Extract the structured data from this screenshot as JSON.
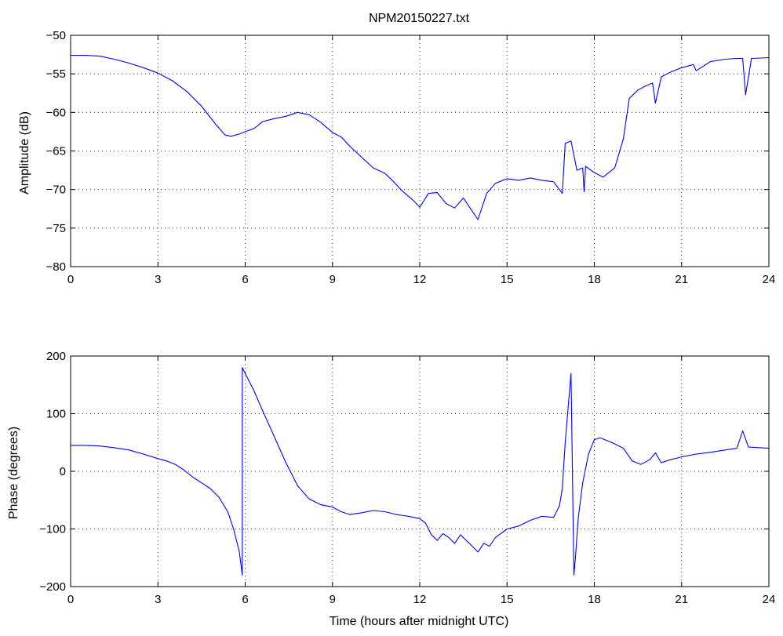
{
  "chart_data": [
    {
      "type": "line",
      "title": "NPM20150227.txt",
      "xlabel": "",
      "ylabel": "Amplitude (dB)",
      "xlim": [
        0,
        24
      ],
      "ylim": [
        -80,
        -50
      ],
      "xticks": [
        0,
        3,
        6,
        9,
        12,
        15,
        18,
        21,
        24
      ],
      "xtick_labels": [
        "0",
        "3",
        "6",
        "9",
        "12",
        "15",
        "18",
        "21",
        "24"
      ],
      "yticks": [
        -80,
        -75,
        -70,
        -65,
        -60,
        -55,
        -50
      ],
      "ytick_labels": [
        "−80",
        "−75",
        "−70",
        "−65",
        "−60",
        "−55",
        "−50"
      ],
      "grid": true,
      "color": "#0000ff",
      "series": [
        {
          "x": [
            0,
            0.5,
            1,
            1.5,
            2,
            2.5,
            3,
            3.5,
            4,
            4.5,
            5,
            5.3,
            5.5,
            5.8,
            6,
            6.3,
            6.6,
            7,
            7.4,
            7.8,
            8.2,
            8.6,
            9,
            9.3,
            9.6,
            10,
            10.4,
            10.8,
            11,
            11.4,
            11.8,
            12,
            12.3,
            12.6,
            12.9,
            13.2,
            13.5,
            13.8,
            14,
            14.3,
            14.6,
            15,
            15.4,
            15.8,
            16.2,
            16.6,
            16.9,
            17,
            17.2,
            17.4,
            17.6,
            17.65,
            17.7,
            18,
            18.3,
            18.7,
            19,
            19.2,
            19.5,
            19.8,
            20,
            20.1,
            20.3,
            20.6,
            21,
            21.4,
            21.5,
            22,
            22.5,
            22.9,
            23.1,
            23.2,
            23.4,
            24
          ],
          "y": [
            -52.6,
            -52.6,
            -52.7,
            -53.1,
            -53.6,
            -54.2,
            -54.9,
            -55.9,
            -57.3,
            -59.2,
            -61.6,
            -62.9,
            -63.1,
            -62.8,
            -62.5,
            -62.1,
            -61.2,
            -60.8,
            -60.5,
            -60.0,
            -60.3,
            -61.3,
            -62.6,
            -63.2,
            -64.4,
            -65.8,
            -67.2,
            -67.9,
            -68.6,
            -70.2,
            -71.5,
            -72.3,
            -70.5,
            -70.4,
            -71.8,
            -72.4,
            -71.1,
            -72.8,
            -73.9,
            -70.5,
            -69.2,
            -68.6,
            -68.8,
            -68.5,
            -68.8,
            -69.0,
            -70.5,
            -64.0,
            -63.7,
            -67.5,
            -67.2,
            -70.3,
            -67.0,
            -67.8,
            -68.4,
            -67.2,
            -63.4,
            -58.2,
            -57.1,
            -56.5,
            -56.2,
            -58.8,
            -55.4,
            -54.8,
            -54.2,
            -53.8,
            -54.6,
            -53.4,
            -53.1,
            -53.0,
            -53.0,
            -57.7,
            -53.0,
            -52.9
          ]
        }
      ]
    },
    {
      "type": "line",
      "title": "",
      "xlabel": "Time (hours after midnight UTC)",
      "ylabel": "Phase (degrees)",
      "xlim": [
        0,
        24
      ],
      "ylim": [
        -200,
        200
      ],
      "xticks": [
        0,
        3,
        6,
        9,
        12,
        15,
        18,
        21,
        24
      ],
      "xtick_labels": [
        "0",
        "3",
        "6",
        "9",
        "12",
        "15",
        "18",
        "21",
        "24"
      ],
      "yticks": [
        -200,
        -100,
        0,
        100,
        200
      ],
      "ytick_labels": [
        "−200",
        "−100",
        "0",
        "100",
        "200"
      ],
      "grid": true,
      "color": "#0000ff",
      "series": [
        {
          "x": [
            0,
            0.5,
            1,
            1.5,
            2,
            2.5,
            3,
            3.3,
            3.6,
            3.9,
            4.2,
            4.5,
            4.8,
            5.1,
            5.4,
            5.6,
            5.8,
            5.9,
            5.9,
            6.0,
            6.3,
            6.6,
            7,
            7.4,
            7.8,
            8.2,
            8.6,
            9,
            9.3,
            9.6,
            10,
            10.4,
            10.8,
            11.2,
            11.6,
            12,
            12.2,
            12.4,
            12.6,
            12.8,
            13,
            13.2,
            13.4,
            13.6,
            13.8,
            14,
            14.2,
            14.4,
            14.6,
            15,
            15.4,
            15.8,
            16.2,
            16.6,
            16.8,
            16.9,
            17.0,
            17.1,
            17.2,
            17.3,
            17.35,
            17.45,
            17.6,
            17.8,
            18.0,
            18.2,
            18.6,
            19,
            19.3,
            19.6,
            19.9,
            20.1,
            20.3,
            20.6,
            21,
            21.5,
            22,
            22.5,
            22.9,
            23.1,
            23.3,
            24
          ],
          "y": [
            45,
            45,
            44,
            41,
            37,
            30,
            22,
            18,
            12,
            2,
            -10,
            -20,
            -30,
            -45,
            -70,
            -100,
            -140,
            -180,
            180,
            170,
            140,
            105,
            60,
            15,
            -25,
            -48,
            -58,
            -62,
            -70,
            -75,
            -72,
            -68,
            -70,
            -75,
            -78,
            -82,
            -90,
            -110,
            -120,
            -108,
            -115,
            -125,
            -110,
            -120,
            -130,
            -140,
            -125,
            -130,
            -115,
            -100,
            -95,
            -85,
            -78,
            -80,
            -60,
            -30,
            50,
            110,
            170,
            -180,
            -150,
            -80,
            -20,
            30,
            55,
            58,
            50,
            40,
            18,
            12,
            20,
            32,
            15,
            20,
            25,
            30,
            33,
            37,
            40,
            70,
            42,
            40
          ]
        }
      ]
    }
  ]
}
